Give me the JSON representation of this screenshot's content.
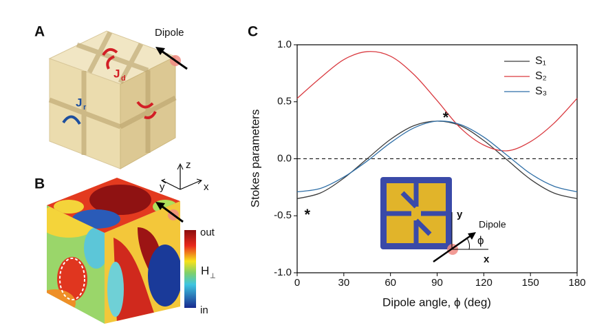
{
  "panel_labels": [
    "A",
    "B",
    "C"
  ],
  "panel_a": {
    "dipole_label": "Dipole",
    "currents": [
      {
        "main": "J",
        "sub": "d"
      },
      {
        "main": "J",
        "sub": "r"
      }
    ]
  },
  "panel_b": {
    "axes": [
      "z",
      "y",
      "x"
    ],
    "colorbar_top": "out",
    "colorbar_bottom": "in",
    "colorbar_label": "H",
    "colorbar_sub": "⊥"
  },
  "chart_data": {
    "type": "line",
    "xlabel": "Dipole angle, ϕ (deg)",
    "ylabel": "Stokes parameters",
    "x": [
      0,
      15,
      30,
      45,
      60,
      75,
      90,
      105,
      120,
      135,
      150,
      165,
      180
    ],
    "series": [
      {
        "name": "S₁",
        "color": "#3a3a3a",
        "values": [
          -0.35,
          -0.3,
          -0.17,
          0.0,
          0.17,
          0.29,
          0.33,
          0.29,
          0.16,
          -0.01,
          -0.18,
          -0.3,
          -0.35
        ]
      },
      {
        "name": "S₂",
        "color": "#d9393f",
        "values": [
          0.53,
          0.71,
          0.87,
          0.94,
          0.9,
          0.74,
          0.51,
          0.27,
          0.12,
          0.07,
          0.15,
          0.31,
          0.53
        ]
      },
      {
        "name": "S₃",
        "color": "#2e6ea6",
        "values": [
          -0.29,
          -0.26,
          -0.16,
          -0.02,
          0.14,
          0.27,
          0.33,
          0.3,
          0.19,
          0.03,
          -0.13,
          -0.24,
          -0.29
        ]
      }
    ],
    "xlim": [
      0,
      180
    ],
    "xticks": [
      0,
      30,
      60,
      90,
      120,
      150,
      180
    ],
    "ylim": [
      -1,
      1
    ],
    "yticks": [
      {
        "value": 1,
        "label": "1.0"
      },
      0.5,
      {
        "value": 0,
        "label": "0.0"
      },
      -0.5,
      {
        "value": -1,
        "label": "-1.0"
      }
    ],
    "zero_line": true,
    "annotations": [
      {
        "text": "*",
        "x": 3,
        "y": -0.45
      },
      {
        "text": "*",
        "x": 92,
        "y": 0.4
      }
    ],
    "inset_labels": [
      "y",
      "x",
      "Dipole",
      "ϕ"
    ]
  }
}
